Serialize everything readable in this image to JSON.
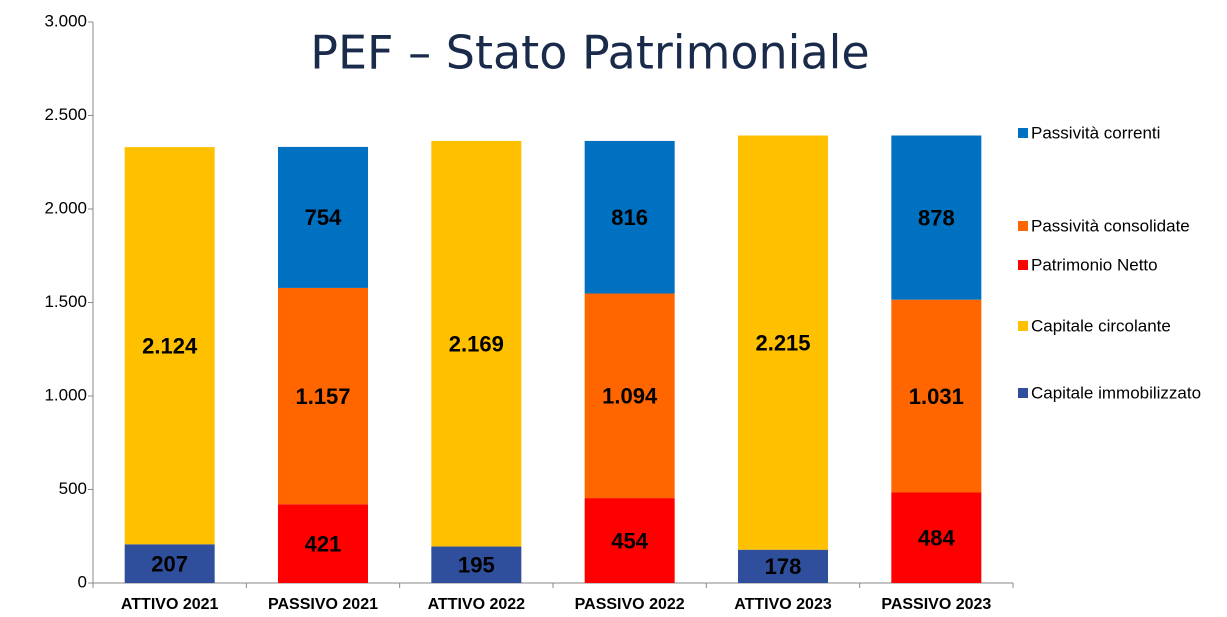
{
  "chart_data": {
    "type": "stacked_bar",
    "title": "PEF – Stato Patrimoniale",
    "categories": [
      "ATTIVO 2021",
      "PASSIVO 2021",
      "ATTIVO 2022",
      "PASSIVO 2022",
      "ATTIVO 2023",
      "PASSIVO 2023"
    ],
    "series": [
      {
        "name": "Capitale immobilizzato",
        "color": "#2f4f9c",
        "values": [
          207,
          null,
          195,
          null,
          178,
          null
        ],
        "value_labels": [
          "207",
          null,
          "195",
          null,
          "178",
          null
        ]
      },
      {
        "name": "Capitale circolante",
        "color": "#ffc000",
        "values": [
          2124,
          null,
          2169,
          null,
          2215,
          null
        ],
        "value_labels": [
          "2.124",
          null,
          "2.169",
          null,
          "2.215",
          null
        ]
      },
      {
        "name": "Patrimonio Netto",
        "color": "#ff0000",
        "values": [
          null,
          421,
          null,
          454,
          null,
          484
        ],
        "value_labels": [
          null,
          "421",
          null,
          "454",
          null,
          "484"
        ]
      },
      {
        "name": "Passività consolidate",
        "color": "#ff6600",
        "values": [
          null,
          1157,
          null,
          1094,
          null,
          1031
        ],
        "value_labels": [
          null,
          "1.157",
          null,
          "1.094",
          null,
          "1.031"
        ]
      },
      {
        "name": "Passività correnti",
        "color": "#0070c0",
        "values": [
          null,
          754,
          null,
          816,
          null,
          878
        ],
        "value_labels": [
          null,
          "754",
          null,
          "816",
          null,
          "878"
        ]
      }
    ],
    "ylim": [
      0,
      3000
    ],
    "yticks": [
      0,
      500,
      {
        "value": 1000,
        "label": "1.000"
      },
      {
        "value": 1500,
        "label": "1.500"
      },
      {
        "value": 2000,
        "label": "2.000"
      },
      {
        "value": 2500,
        "label": "2.500"
      },
      {
        "value": 3000,
        "label": "3.000"
      }
    ],
    "grid": false,
    "legend": "right"
  }
}
